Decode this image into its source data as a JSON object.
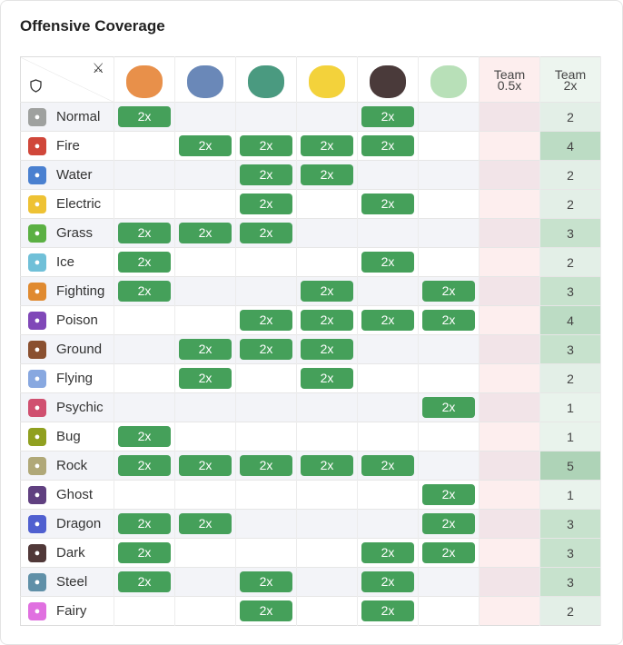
{
  "title": "Offensive Coverage",
  "header": {
    "attack_icon": "crossed-swords-icon",
    "defense_icon": "shield-icon",
    "team_half": [
      "Team",
      "0.5x"
    ],
    "team_double": [
      "Team",
      "2x"
    ]
  },
  "pokemon": [
    {
      "icon": "charizard-sprite",
      "color": "#e8904a"
    },
    {
      "icon": "blastoise-sprite",
      "color": "#6a88b8"
    },
    {
      "icon": "venusaur-sprite",
      "color": "#4a9a80"
    },
    {
      "icon": "pikachu-sprite",
      "color": "#f3d23b"
    },
    {
      "icon": "dark-pokemon-sprite",
      "color": "#4a3a3a"
    },
    {
      "icon": "gardevoir-sprite",
      "color": "#b8e0b8"
    }
  ],
  "badge_label": "2x",
  "rows": [
    {
      "type": "Normal",
      "color": "#9fa19f",
      "hits": [
        1,
        0,
        0,
        0,
        1,
        0
      ],
      "team_2x": "2"
    },
    {
      "type": "Fire",
      "color": "#d0473a",
      "hits": [
        0,
        1,
        1,
        1,
        1,
        0
      ],
      "team_2x": "4"
    },
    {
      "type": "Water",
      "color": "#4a80d0",
      "hits": [
        0,
        0,
        1,
        1,
        0,
        0
      ],
      "team_2x": "2"
    },
    {
      "type": "Electric",
      "color": "#eec234",
      "hits": [
        0,
        0,
        1,
        0,
        1,
        0
      ],
      "team_2x": "2"
    },
    {
      "type": "Grass",
      "color": "#5bb043",
      "hits": [
        1,
        1,
        1,
        0,
        0,
        0
      ],
      "team_2x": "3"
    },
    {
      "type": "Ice",
      "color": "#70c0d8",
      "hits": [
        1,
        0,
        0,
        0,
        1,
        0
      ],
      "team_2x": "2"
    },
    {
      "type": "Fighting",
      "color": "#e08a30",
      "hits": [
        1,
        0,
        0,
        1,
        0,
        1
      ],
      "team_2x": "3"
    },
    {
      "type": "Poison",
      "color": "#8048b8",
      "hits": [
        0,
        0,
        1,
        1,
        1,
        1
      ],
      "team_2x": "4"
    },
    {
      "type": "Ground",
      "color": "#8a5030",
      "hits": [
        0,
        1,
        1,
        1,
        0,
        0
      ],
      "team_2x": "3"
    },
    {
      "type": "Flying",
      "color": "#88a8e0",
      "hits": [
        0,
        1,
        0,
        1,
        0,
        0
      ],
      "team_2x": "2"
    },
    {
      "type": "Psychic",
      "color": "#d05070",
      "hits": [
        0,
        0,
        0,
        0,
        0,
        1
      ],
      "team_2x": "1"
    },
    {
      "type": "Bug",
      "color": "#90a020",
      "hits": [
        1,
        0,
        0,
        0,
        0,
        0
      ],
      "team_2x": "1"
    },
    {
      "type": "Rock",
      "color": "#b0a878",
      "hits": [
        1,
        1,
        1,
        1,
        1,
        0
      ],
      "team_2x": "5"
    },
    {
      "type": "Ghost",
      "color": "#604080",
      "hits": [
        0,
        0,
        0,
        0,
        0,
        1
      ],
      "team_2x": "1"
    },
    {
      "type": "Dragon",
      "color": "#5060d0",
      "hits": [
        1,
        1,
        0,
        0,
        0,
        1
      ],
      "team_2x": "3"
    },
    {
      "type": "Dark",
      "color": "#503838",
      "hits": [
        1,
        0,
        0,
        0,
        1,
        1
      ],
      "team_2x": "3"
    },
    {
      "type": "Steel",
      "color": "#6090a8",
      "hits": [
        1,
        0,
        1,
        0,
        1,
        0
      ],
      "team_2x": "3"
    },
    {
      "type": "Fairy",
      "color": "#e070e0",
      "hits": [
        0,
        0,
        1,
        0,
        1,
        0
      ],
      "team_2x": "2"
    }
  ],
  "count_colors": {
    "1": "#e9f3ec",
    "2": "#e3efe7",
    "3": "#c7e2cd",
    "4": "#bcdcc4",
    "5": "#aed3b7"
  }
}
